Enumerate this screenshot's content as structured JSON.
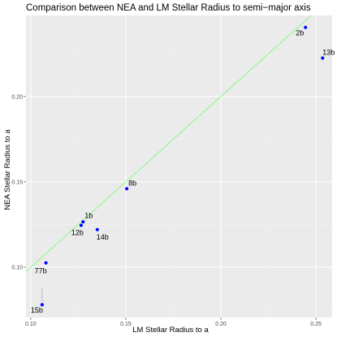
{
  "chart_data": {
    "type": "scatter",
    "title": "Comparison between NEA and LM Stellar Radius to semi−major axis",
    "xlabel": "LM Stellar Radius to a",
    "ylabel": "NEA Stellar Radius to a",
    "xlim": [
      0.0975,
      0.2585
    ],
    "ylim": [
      0.0705,
      0.2475
    ],
    "x_ticks": [
      0.1,
      0.15,
      0.2,
      0.25
    ],
    "x_tick_labels": [
      "0.10",
      "0.15",
      "0.20",
      "0.25"
    ],
    "y_ticks": [
      0.1,
      0.15,
      0.2
    ],
    "y_tick_labels": [
      "0.10",
      "0.15",
      "0.20"
    ],
    "grid": true,
    "reference_line": {
      "slope": 1,
      "intercept": 0,
      "color": "#66ff66"
    },
    "points": [
      {
        "label": "2b",
        "x": 0.2445,
        "y": 0.2405
      },
      {
        "label": "13b",
        "x": 0.2535,
        "y": 0.2225
      },
      {
        "label": "8b",
        "x": 0.1505,
        "y": 0.146
      },
      {
        "label": "1b",
        "x": 0.1275,
        "y": 0.1265
      },
      {
        "label": "12b",
        "x": 0.1265,
        "y": 0.1245
      },
      {
        "label": "14b",
        "x": 0.135,
        "y": 0.122
      },
      {
        "label": "77b",
        "x": 0.108,
        "y": 0.1025
      },
      {
        "label": "15b",
        "x": 0.106,
        "y": 0.078
      }
    ],
    "colors": {
      "panel_background": "#ebebeb",
      "grid_major": "#ffffff",
      "grid_minor": "#f5f5f5",
      "point": "#0000ff",
      "tick_label": "#4d4d4d",
      "tick_mark": "#333333",
      "connector": "#999999"
    }
  }
}
